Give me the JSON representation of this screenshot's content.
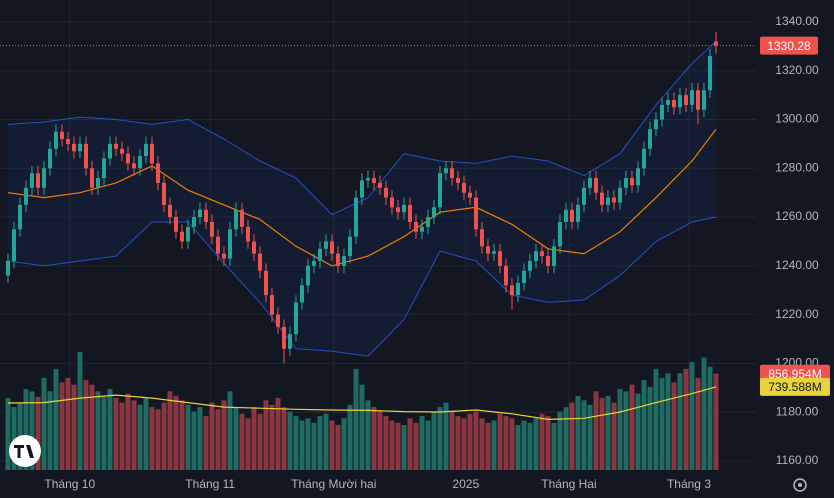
{
  "chart_data": {
    "type": "candlestick",
    "open": [
      1236,
      1242,
      1255,
      1265,
      1272,
      1278,
      1272,
      1280,
      1288,
      1295,
      1292,
      1290,
      1287,
      1290,
      1280,
      1272,
      1276,
      1284,
      1290,
      1288,
      1286,
      1282,
      1280,
      1285,
      1290,
      1282,
      1274,
      1265,
      1260,
      1254,
      1250,
      1256,
      1260,
      1263,
      1258,
      1252,
      1245,
      1243,
      1255,
      1263,
      1256,
      1250,
      1245,
      1238,
      1228,
      1220,
      1215,
      1206,
      1212,
      1225,
      1232,
      1240,
      1242,
      1247,
      1250,
      1245,
      1240,
      1244,
      1252,
      1268,
      1275,
      1276,
      1274,
      1272,
      1268,
      1264,
      1262,
      1265,
      1258,
      1254,
      1256,
      1260,
      1264,
      1278,
      1280,
      1276,
      1274,
      1270,
      1268,
      1255,
      1248,
      1245,
      1246,
      1240,
      1232,
      1228,
      1233,
      1238,
      1242,
      1246,
      1244,
      1240,
      1248,
      1258,
      1263,
      1258,
      1265,
      1272,
      1276,
      1270,
      1265,
      1268,
      1266,
      1272,
      1276,
      1273,
      1280,
      1288,
      1296,
      1300,
      1306,
      1308,
      1305,
      1310,
      1306,
      1312,
      1304,
      1312,
      1332
    ],
    "high": [
      1245,
      1258,
      1268,
      1275,
      1281,
      1281,
      1283,
      1291,
      1298,
      1298,
      1295,
      1293,
      1293,
      1293,
      1283,
      1279,
      1287,
      1293,
      1293,
      1291,
      1289,
      1285,
      1288,
      1293,
      1293,
      1285,
      1277,
      1268,
      1263,
      1257,
      1259,
      1263,
      1266,
      1266,
      1261,
      1255,
      1248,
      1258,
      1266,
      1266,
      1259,
      1253,
      1248,
      1241,
      1231,
      1223,
      1218,
      1215,
      1228,
      1235,
      1243,
      1245,
      1250,
      1253,
      1253,
      1248,
      1247,
      1255,
      1271,
      1278,
      1279,
      1279,
      1277,
      1275,
      1271,
      1267,
      1268,
      1268,
      1261,
      1259,
      1263,
      1267,
      1281,
      1283,
      1283,
      1279,
      1277,
      1273,
      1271,
      1258,
      1251,
      1249,
      1249,
      1243,
      1235,
      1236,
      1241,
      1245,
      1249,
      1249,
      1247,
      1251,
      1261,
      1266,
      1266,
      1268,
      1275,
      1279,
      1279,
      1273,
      1271,
      1271,
      1275,
      1279,
      1279,
      1283,
      1291,
      1299,
      1303,
      1309,
      1311,
      1311,
      1313,
      1313,
      1315,
      1315,
      1315,
      1329,
      1336
    ],
    "low": [
      1233,
      1239,
      1252,
      1262,
      1269,
      1269,
      1269,
      1277,
      1285,
      1289,
      1287,
      1284,
      1284,
      1277,
      1269,
      1269,
      1273,
      1281,
      1285,
      1283,
      1279,
      1277,
      1277,
      1282,
      1279,
      1271,
      1262,
      1257,
      1251,
      1247,
      1247,
      1253,
      1257,
      1255,
      1249,
      1242,
      1240,
      1240,
      1252,
      1253,
      1247,
      1242,
      1235,
      1225,
      1217,
      1212,
      1200,
      1203,
      1209,
      1222,
      1229,
      1237,
      1239,
      1244,
      1242,
      1237,
      1237,
      1241,
      1249,
      1265,
      1272,
      1271,
      1269,
      1265,
      1261,
      1259,
      1259,
      1255,
      1251,
      1251,
      1253,
      1257,
      1261,
      1275,
      1273,
      1271,
      1267,
      1265,
      1252,
      1245,
      1242,
      1242,
      1237,
      1229,
      1222,
      1225,
      1230,
      1235,
      1239,
      1241,
      1237,
      1237,
      1245,
      1255,
      1255,
      1255,
      1262,
      1269,
      1267,
      1262,
      1262,
      1263,
      1263,
      1269,
      1270,
      1270,
      1277,
      1285,
      1293,
      1297,
      1303,
      1302,
      1302,
      1303,
      1303,
      1298,
      1301,
      1309,
      1327
    ],
    "close": [
      1242,
      1255,
      1265,
      1272,
      1278,
      1272,
      1280,
      1288,
      1295,
      1292,
      1290,
      1287,
      1290,
      1280,
      1272,
      1276,
      1284,
      1290,
      1288,
      1286,
      1282,
      1280,
      1285,
      1290,
      1282,
      1274,
      1265,
      1260,
      1254,
      1250,
      1256,
      1260,
      1263,
      1258,
      1252,
      1245,
      1243,
      1255,
      1263,
      1256,
      1250,
      1245,
      1238,
      1228,
      1220,
      1215,
      1206,
      1212,
      1225,
      1232,
      1240,
      1242,
      1247,
      1250,
      1245,
      1240,
      1244,
      1252,
      1268,
      1275,
      1276,
      1274,
      1272,
      1268,
      1264,
      1262,
      1265,
      1258,
      1254,
      1256,
      1260,
      1264,
      1278,
      1280,
      1276,
      1274,
      1270,
      1268,
      1255,
      1248,
      1245,
      1246,
      1240,
      1232,
      1228,
      1233,
      1238,
      1242,
      1246,
      1244,
      1240,
      1248,
      1258,
      1263,
      1258,
      1265,
      1272,
      1276,
      1270,
      1265,
      1268,
      1266,
      1272,
      1276,
      1273,
      1280,
      1288,
      1296,
      1300,
      1306,
      1308,
      1305,
      1310,
      1306,
      1312,
      1304,
      1312,
      1326,
      1330.28
    ],
    "up_color": "#26a69a",
    "down_color": "#ef5350",
    "volume": [
      640,
      560,
      600,
      720,
      700,
      650,
      820,
      700,
      900,
      780,
      820,
      760,
      1050,
      800,
      760,
      700,
      650,
      720,
      640,
      600,
      680,
      620,
      580,
      640,
      560,
      540,
      600,
      700,
      660,
      620,
      580,
      520,
      560,
      480,
      600,
      540,
      620,
      700,
      560,
      500,
      460,
      560,
      500,
      620,
      580,
      640,
      560,
      520,
      480,
      440,
      460,
      420,
      480,
      500,
      440,
      400,
      460,
      580,
      900,
      760,
      620,
      560,
      520,
      480,
      440,
      420,
      400,
      460,
      420,
      480,
      440,
      520,
      560,
      600,
      520,
      480,
      460,
      500,
      520,
      460,
      420,
      440,
      500,
      480,
      460,
      400,
      440,
      420,
      460,
      500,
      480,
      420,
      520,
      560,
      600,
      660,
      620,
      580,
      700,
      640,
      660,
      600,
      720,
      700,
      760,
      680,
      800,
      740,
      900,
      820,
      860,
      780,
      860,
      900,
      960,
      820,
      1000,
      920,
      856.954
    ],
    "volume_up_color": "#1f6b62",
    "volume_down_color": "#8c3641",
    "volume_label": "856.954M",
    "bands": {
      "x": [
        0,
        6,
        12,
        18,
        24,
        30,
        36,
        42,
        48,
        54,
        60,
        66,
        72,
        78,
        84,
        90,
        96,
        102,
        108,
        114,
        118
      ],
      "upper": [
        1298,
        1299,
        1301,
        1300,
        1298,
        1300,
        1292,
        1283,
        1276,
        1261,
        1268,
        1286,
        1283,
        1282,
        1285,
        1283,
        1277,
        1286,
        1306,
        1323,
        1332
      ],
      "middle": [
        1270,
        1268,
        1270,
        1274,
        1281,
        1271,
        1265,
        1259,
        1248,
        1240,
        1244,
        1252,
        1262,
        1264,
        1257,
        1247,
        1245,
        1254,
        1268,
        1283,
        1296
      ],
      "lower": [
        1242,
        1240,
        1242,
        1244,
        1258,
        1258,
        1241,
        1225,
        1206,
        1205,
        1203,
        1218,
        1246,
        1242,
        1228,
        1225,
        1226,
        1236,
        1250,
        1258,
        1260
      ],
      "color": "#2962ff",
      "middle_color": "#f57c00"
    },
    "volume_ma": {
      "x": [
        0,
        6,
        12,
        18,
        24,
        30,
        36,
        42,
        48,
        54,
        60,
        66,
        72,
        78,
        84,
        90,
        96,
        102,
        108,
        114,
        118
      ],
      "values": [
        596,
        600,
        640,
        667,
        640,
        600,
        560,
        550,
        540,
        534,
        530,
        520,
        516,
        534,
        500,
        450,
        460,
        516,
        600,
        680,
        739.588
      ],
      "color": "#e8d33a"
    },
    "volume_ma_label": "739.588M",
    "xlim": [
      -1.33,
      124.67
    ],
    "ylim": [
      1156.3,
      1349
    ],
    "yticks": [
      {
        "value": 1160,
        "label": "1160.00"
      },
      {
        "value": 1180,
        "label": "1180.00"
      },
      {
        "value": 1200,
        "label": "1200.00"
      },
      {
        "value": 1220,
        "label": "1220.00"
      },
      {
        "value": 1240,
        "label": "1240.00"
      },
      {
        "value": 1260,
        "label": "1260.00"
      },
      {
        "value": 1280,
        "label": "1280.00"
      },
      {
        "value": 1300,
        "label": "1300.00"
      },
      {
        "value": 1320,
        "label": "1320.00"
      },
      {
        "value": 1340,
        "label": "1340.00"
      }
    ],
    "xticks": [
      {
        "value": 10.3,
        "label": "Tháng 10"
      },
      {
        "value": 33.7,
        "label": "Tháng 11"
      },
      {
        "value": 54.3,
        "label": "Tháng Mười hai"
      },
      {
        "value": 76.3,
        "label": "2025"
      },
      {
        "value": 93.5,
        "label": "Tháng Hai"
      },
      {
        "value": 113.5,
        "label": "Tháng 3"
      }
    ],
    "grid": true
  }
}
